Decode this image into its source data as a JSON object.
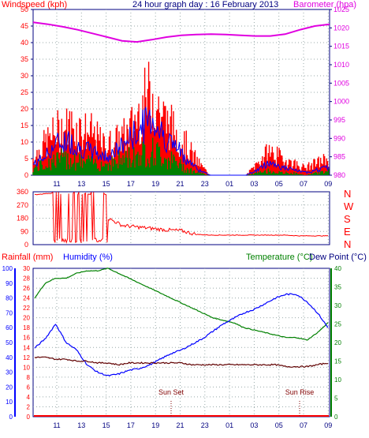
{
  "header": {
    "windspeed_label": "Windspeed (kph)",
    "title": "24 hour graph day : 16 February 2013",
    "barometer_label": "Barometer (hpa)"
  },
  "bottom_header": {
    "rainfall_label": "Rainfall (mm)",
    "humidity_label": "Humidity (%)",
    "temperature_label": "Temperature (°C)",
    "dewpoint_label": "Dew Point (°C)"
  },
  "direction_labels": [
    "N",
    "W",
    "S",
    "E",
    "N"
  ],
  "annotations": {
    "sun_set": "Sun Set",
    "sun_rise": "Sun Rise"
  },
  "colors": {
    "wind": "#ff0000",
    "gust": "#0000ff",
    "avg": "#008000",
    "baro": "#e000e0",
    "temp": "#0000ff",
    "humidity": "#008000",
    "dew": "#600000",
    "rain": "#ff0000",
    "frame": "#000080"
  },
  "chart_data": [
    {
      "type": "area",
      "name": "wind",
      "x_ticks": [
        "11",
        "13",
        "15",
        "17",
        "19",
        "21",
        "23",
        "01",
        "03",
        "05",
        "07",
        "09"
      ],
      "left_axis": {
        "label": "Windspeed (kph)",
        "ylim": [
          0,
          50
        ],
        "ticks": [
          0,
          5,
          10,
          15,
          20,
          25,
          30,
          35,
          40,
          45,
          50
        ]
      },
      "right_axis": {
        "label": "Barometer (hpa)",
        "ylim": [
          980,
          1025
        ],
        "ticks": [
          980,
          985,
          990,
          995,
          1000,
          1005,
          1010,
          1015,
          1020,
          1025
        ]
      },
      "barometer_hpa": [
        1021.5,
        1021,
        1020.3,
        1019.5,
        1018.5,
        1017.5,
        1016.5,
        1016.2,
        1016.8,
        1017.5,
        1018.0,
        1018.2,
        1018.3,
        1018.2,
        1018.0,
        1017.8,
        1017.8,
        1018.3,
        1019.5,
        1020.5,
        1021
      ],
      "wind_envelope_kph": [
        7,
        13,
        18,
        20,
        19,
        17,
        12,
        14,
        17,
        26,
        34,
        24,
        18,
        12,
        5,
        0,
        0,
        0,
        0,
        5,
        10,
        7,
        5,
        3,
        5,
        7
      ],
      "gust_envelope_kph": [
        4,
        7,
        12,
        13,
        10,
        9,
        7,
        9,
        13,
        17,
        22,
        15,
        11,
        6,
        2,
        0,
        0,
        0,
        0,
        2,
        5,
        3,
        2,
        1,
        2,
        3
      ],
      "average_envelope_kph": [
        3,
        5,
        7,
        8,
        6,
        6,
        5,
        6,
        8,
        10,
        11,
        9,
        6,
        3,
        1,
        0,
        0,
        0,
        0,
        1,
        2,
        1,
        1,
        0,
        1,
        2
      ]
    },
    {
      "type": "line",
      "name": "wind_direction",
      "left_axis": {
        "ylim": [
          0,
          360
        ],
        "ticks": [
          0,
          90,
          180,
          270,
          360
        ]
      },
      "direction_deg": [
        340,
        350,
        350,
        340,
        100,
        180,
        130,
        120,
        110,
        100,
        95,
        70,
        65,
        65,
        65,
        65,
        65,
        65,
        60,
        60,
        60
      ]
    },
    {
      "type": "line",
      "name": "temperature_humidity",
      "x_ticks": [
        "11",
        "13",
        "15",
        "17",
        "19",
        "21",
        "23",
        "01",
        "03",
        "05",
        "07",
        "09"
      ],
      "rain_axis": {
        "label": "Rainfall (mm)",
        "ylim": [
          0,
          100
        ],
        "ticks": [
          0,
          10,
          20,
          30,
          40,
          50,
          60,
          70,
          80,
          90,
          100
        ]
      },
      "humidity_axis": {
        "label": "Humidity (%)",
        "ylim": [
          0,
          30
        ],
        "ticks": [
          0,
          2,
          4,
          6,
          8,
          10,
          12,
          14,
          16,
          18,
          20,
          22,
          24,
          26,
          28,
          30
        ]
      },
      "temperature_axis": {
        "label": "Temperature (°C)",
        "ylim": [
          0,
          40
        ],
        "ticks": [
          0,
          5,
          10,
          15,
          20,
          25,
          30,
          35,
          40
        ]
      },
      "temperature_c": [
        18.5,
        21,
        25,
        20,
        18,
        14,
        12,
        11,
        11.5,
        12.5,
        13,
        14,
        15.5,
        17,
        18,
        19.5,
        21,
        23,
        25,
        26.5,
        28,
        29,
        30.5,
        32,
        33,
        33,
        31,
        28,
        24
      ],
      "humidity_pct": [
        24,
        27,
        28,
        28,
        29,
        29.5,
        29.5,
        30,
        29,
        28,
        27,
        26,
        25,
        24,
        23,
        22,
        21,
        20,
        19.5,
        19,
        18,
        17.5,
        17,
        16.5,
        16,
        16,
        15.5,
        17,
        19
      ],
      "dew_point_c": [
        16,
        16,
        15.5,
        15.5,
        15,
        15,
        14.5,
        14.5,
        14,
        14.5,
        14.5,
        14.5,
        14.5,
        14.5,
        14.5,
        14,
        14,
        14,
        14,
        14,
        14,
        14,
        14,
        14,
        13.5,
        13.5,
        13.5,
        14,
        14.5
      ],
      "rainfall_mm": 0
    }
  ]
}
